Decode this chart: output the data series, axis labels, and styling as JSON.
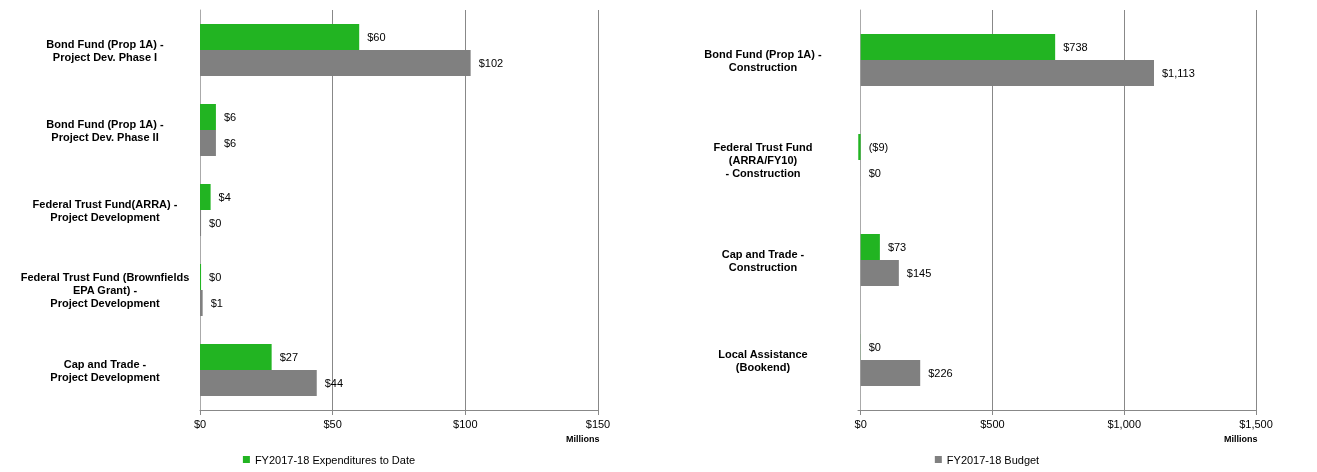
{
  "chart_data": [
    {
      "type": "bar",
      "orientation": "horizontal",
      "categories": [
        "Bond Fund (Prop 1A) -\nProject Dev. Phase I",
        "Bond Fund (Prop 1A) -\nProject Dev. Phase II",
        "Federal Trust Fund(ARRA) -\nProject Development",
        "Federal Trust Fund (Brownfields\nEPA Grant) -\nProject Development",
        "Cap and Trade -\nProject Development"
      ],
      "series": [
        {
          "name": "FY2017-18 Expenditures to Date",
          "color": "#22b422",
          "values": [
            60,
            6,
            4,
            0.4,
            27
          ],
          "value_labels": [
            "$60",
            "$6",
            "$4",
            "$0",
            "$27"
          ]
        },
        {
          "color": "#808080",
          "values": [
            102,
            6,
            0.4,
            1,
            44
          ],
          "value_labels": [
            "$102",
            "$6",
            "$0",
            "$1",
            "$44"
          ]
        }
      ],
      "xlim": [
        0,
        150
      ],
      "xticks": [
        {
          "value": 0,
          "label": "$0"
        },
        {
          "value": 50,
          "label": "$50"
        },
        {
          "value": 100,
          "label": "$100"
        },
        {
          "value": 150,
          "label": "$150"
        }
      ],
      "xlabel": "Millions",
      "grid": "x",
      "legend": "bottom"
    },
    {
      "type": "bar",
      "orientation": "horizontal",
      "categories": [
        "Bond Fund (Prop 1A) -\nConstruction",
        "Federal Trust Fund\n(ARRA/FY10)\n- Construction",
        "Cap and Trade -\nConstruction",
        "Local Assistance\n(Bookend)"
      ],
      "series": [
        {
          "color": "#22b422",
          "values": [
            738,
            -9,
            73,
            0.4
          ],
          "value_labels": [
            "$738",
            "($9)",
            "$73",
            "$0"
          ]
        },
        {
          "name": "FY2017-18 Budget",
          "color": "#808080",
          "values": [
            1113,
            0.4,
            145,
            226
          ],
          "value_labels": [
            "$1,113",
            "$0",
            "$145",
            "$226"
          ]
        }
      ],
      "xlim": [
        -10,
        1500
      ],
      "xticks": [
        {
          "value": 0,
          "label": "$0"
        },
        {
          "value": 500,
          "label": "$500"
        },
        {
          "value": 1000,
          "label": "$1,000"
        },
        {
          "value": 1500,
          "label": "$1,500"
        }
      ],
      "xlabel": "Millions",
      "grid": "x",
      "legend": "bottom"
    }
  ]
}
